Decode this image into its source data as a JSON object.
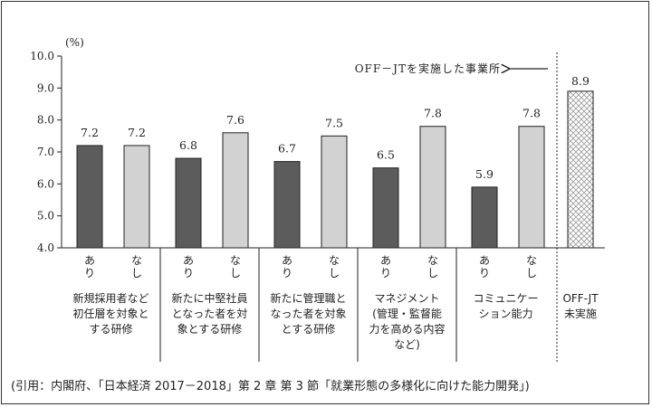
{
  "chart_data": {
    "type": "bar",
    "unit_label": "(%)",
    "ylim": [
      4.0,
      10.0
    ],
    "y_ticks": [
      "4.0",
      "5.0",
      "6.0",
      "7.0",
      "8.0",
      "9.0",
      "10.0"
    ],
    "bar_labels": [
      "あり",
      "なし"
    ],
    "colors": {
      "ari": "#5c5c5c",
      "nashi": "#d2d2d2",
      "hatch": "#9a9a9a"
    },
    "groups": [
      {
        "label_lines": [
          "新規採用者など",
          "初任層を対象と",
          "する研修"
        ],
        "values": [
          7.2,
          7.2
        ],
        "value_labels": [
          "7.2",
          "7.2"
        ]
      },
      {
        "label_lines": [
          "新たに中堅社員",
          "となった者を対",
          "象とする研修"
        ],
        "values": [
          6.8,
          7.6
        ],
        "value_labels": [
          "6.8",
          "7.6"
        ]
      },
      {
        "label_lines": [
          "新たに管理職と",
          "なった者を対象",
          "とする研修"
        ],
        "values": [
          6.7,
          7.5
        ],
        "value_labels": [
          "6.7",
          "7.5"
        ]
      },
      {
        "label_lines": [
          "マネジメント",
          "(管理・監督能",
          "力を高める内容",
          "など)"
        ],
        "values": [
          6.5,
          7.8
        ],
        "value_labels": [
          "6.5",
          "7.8"
        ]
      },
      {
        "label_lines": [
          "コミュニケー",
          "ション能力"
        ],
        "values": [
          5.9,
          7.8
        ],
        "value_labels": [
          "5.9",
          "7.8"
        ]
      }
    ],
    "extra_bar": {
      "label_lines": [
        "OFF-JT",
        "未実施"
      ],
      "value": 8.9,
      "value_label": "8.9"
    },
    "annotation": "OFF－JTを実施した事業所"
  },
  "caption": "(引用：内閣府、「日本経済 2017－2018」第 2 章 第 3 節「就業形態の多様化に向けた能力開発」)"
}
